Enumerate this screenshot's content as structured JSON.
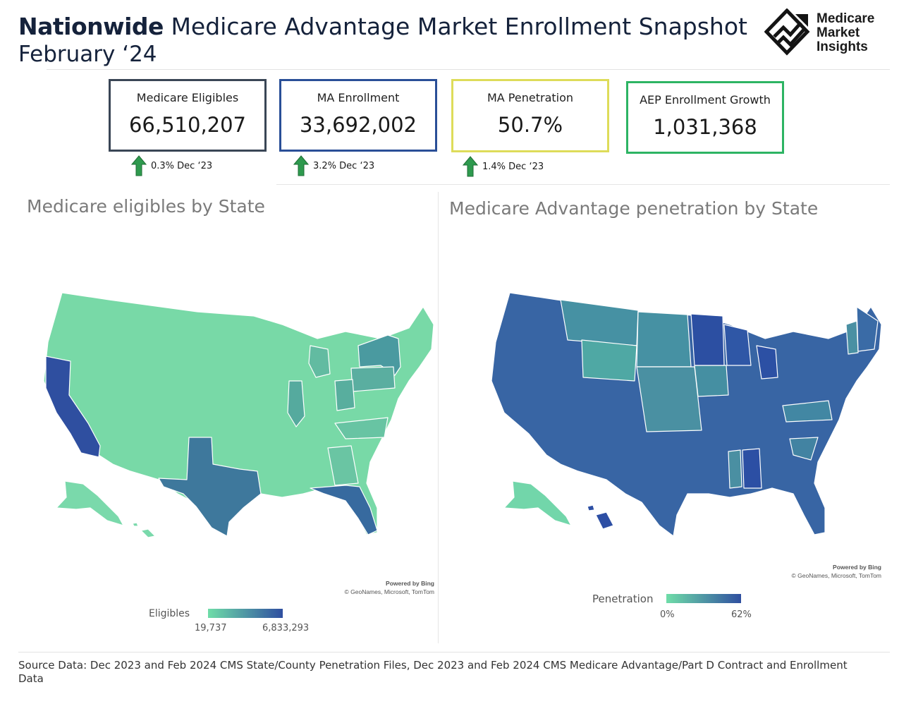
{
  "header": {
    "title_bold": "Nationwide",
    "title_rest": "Medicare Advantage Market Enrollment Snapshot",
    "subtitle": "February ‘24",
    "logo_lines": [
      "Medicare",
      "Market",
      "Insights"
    ]
  },
  "kpis": [
    {
      "label": "Medicare Eligibles",
      "value": "66,510,207",
      "border": "#3a4656"
    },
    {
      "label": "MA Enrollment",
      "value": "33,692,002",
      "border": "#2a4f97"
    },
    {
      "label": "MA Penetration",
      "value": "50.7%",
      "border": "#dedc5a"
    },
    {
      "label": "AEP Enrollment Growth",
      "value": "1,031,368",
      "border": "#2db463"
    }
  ],
  "deltas": [
    {
      "text": "0.3% Dec ‘23",
      "direction": "up"
    },
    {
      "text": "3.2% Dec ‘23",
      "direction": "up"
    },
    {
      "text": "1.4% Dec ‘23",
      "direction": "up"
    }
  ],
  "colors": {
    "arrow_fill": "#2e9a4e",
    "scale_low": "#6fdda8",
    "scale_high": "#2f4fa0"
  },
  "maps": {
    "left": {
      "title": "Medicare eligibles by State",
      "legend_title": "Eligibles",
      "legend_min": "19,737",
      "legend_max": "6,833,293",
      "powered_by": "Powered by Bing",
      "attribution": "© GeoNames, Microsoft, TomTom"
    },
    "right": {
      "title": "Medicare Advantage penetration by State",
      "legend_title": "Penetration",
      "legend_min": "0%",
      "legend_max": "62%",
      "powered_by": "Powered by Bing",
      "attribution": "© GeoNames, Microsoft, TomTom"
    }
  },
  "source": "Source Data: Dec 2023 and Feb 2024 CMS State/County Penetration Files, Dec 2023 and Feb 2024 CMS Medicare Advantage/Part D Contract and Enrollment Data"
}
